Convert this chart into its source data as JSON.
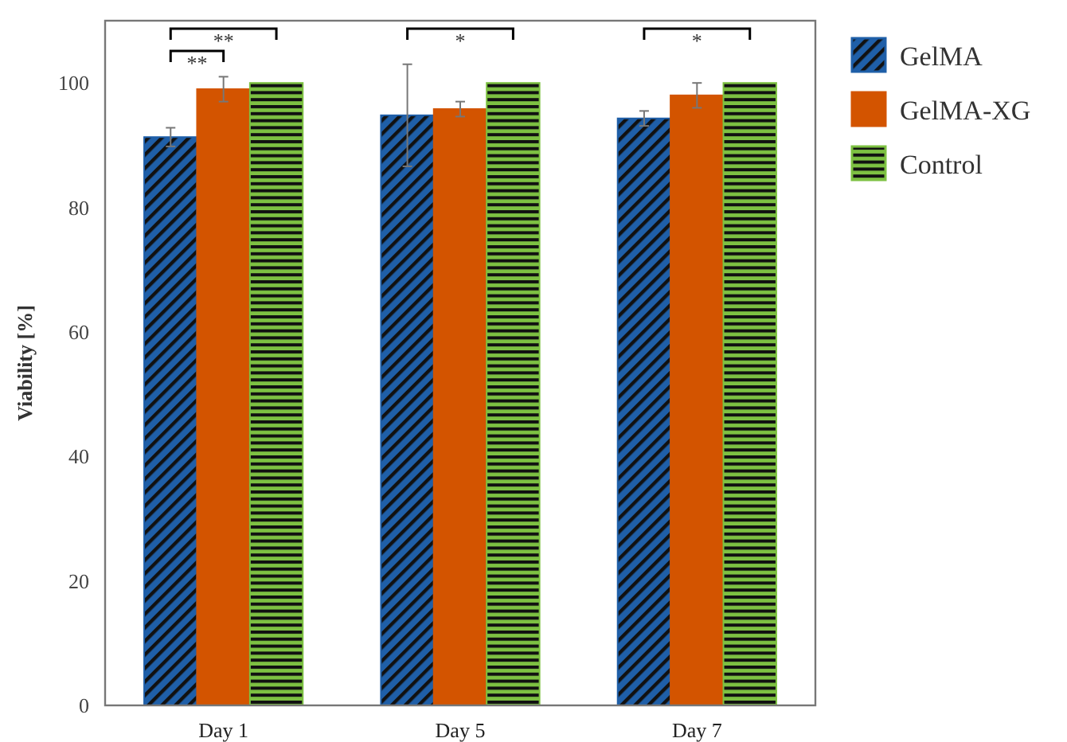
{
  "chart_data": {
    "type": "bar",
    "ylabel": "Viability [%]",
    "categories": [
      "Day 1",
      "Day 5",
      "Day 7"
    ],
    "series": [
      {
        "name": "GelMA",
        "color": "#1f5fa8",
        "values": [
          91.3,
          94.8,
          94.3
        ],
        "errors": [
          1.5,
          8.2,
          1.2
        ]
      },
      {
        "name": "GelMA-XG",
        "color": "#d35400",
        "values": [
          99,
          95.8,
          98
        ],
        "errors": [
          2,
          1.2,
          2
        ]
      },
      {
        "name": "Control",
        "color": "#7dc142",
        "values": [
          100,
          100,
          100
        ]
      }
    ],
    "ylim": [
      0,
      110
    ],
    "yticks": [
      0,
      20,
      40,
      60,
      80,
      100
    ],
    "grid": false,
    "legend": "right",
    "annotations": [
      "**",
      "**",
      "*",
      "*"
    ]
  }
}
